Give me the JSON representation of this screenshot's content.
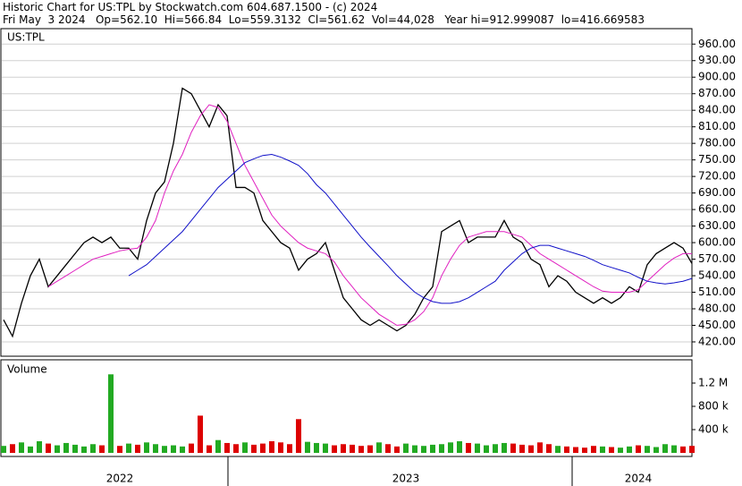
{
  "header": {
    "title": "Historic Chart for US:TPL by Stockwatch.com 604.687.1500 - (c) 2024",
    "quote": "Fri May  3 2024   Op=562.10  Hi=566.84  Lo=559.3132  Cl=561.62  Vol=44,028   Year hi=912.999087  lo=416.669583"
  },
  "chart_data": [
    {
      "type": "line",
      "label": "US:TPL",
      "ylim": [
        394,
        988
      ],
      "yticks": [
        {
          "value": 420,
          "label": "420.00"
        },
        {
          "value": 450,
          "label": "450.00"
        },
        {
          "value": 480,
          "label": "480.00"
        },
        {
          "value": 510,
          "label": "510.00"
        },
        {
          "value": 540,
          "label": "540.00"
        },
        {
          "value": 570,
          "label": "570.00"
        },
        {
          "value": 600,
          "label": "600.00"
        },
        {
          "value": 630,
          "label": "630.00"
        },
        {
          "value": 660,
          "label": "660.00"
        },
        {
          "value": 690,
          "label": "690.00"
        },
        {
          "value": 720,
          "label": "720.00"
        },
        {
          "value": 750,
          "label": "750.00"
        },
        {
          "value": 780,
          "label": "780.00"
        },
        {
          "value": 810,
          "label": "810.00"
        },
        {
          "value": 840,
          "label": "840.00"
        },
        {
          "value": 870,
          "label": "870.00"
        },
        {
          "value": 900,
          "label": "900.00"
        },
        {
          "value": 930,
          "label": "930.00"
        },
        {
          "value": 960,
          "label": "960.00"
        }
      ],
      "grid": true,
      "series": [
        {
          "color": "#000000",
          "values": [
            460,
            430,
            490,
            540,
            570,
            520,
            540,
            560,
            580,
            600,
            610,
            600,
            610,
            590,
            590,
            570,
            640,
            690,
            710,
            780,
            880,
            870,
            840,
            810,
            850,
            830,
            700,
            700,
            690,
            640,
            620,
            600,
            590,
            550,
            570,
            580,
            600,
            550,
            500,
            480,
            460,
            450,
            460,
            450,
            440,
            450,
            470,
            500,
            520,
            620,
            630,
            640,
            600,
            610,
            610,
            610,
            640,
            610,
            600,
            570,
            560,
            520,
            540,
            530,
            510,
            500,
            490,
            500,
            490,
            500,
            520,
            510,
            560,
            580,
            590,
            600,
            590,
            562
          ]
        },
        {
          "color": "#e020c0",
          "values": [
            null,
            null,
            null,
            null,
            null,
            520,
            530,
            540,
            550,
            560,
            570,
            575,
            580,
            585,
            588,
            590,
            610,
            640,
            690,
            730,
            760,
            800,
            830,
            850,
            845,
            820,
            780,
            740,
            710,
            680,
            650,
            630,
            615,
            600,
            590,
            585,
            580,
            565,
            540,
            520,
            500,
            485,
            470,
            460,
            450,
            452,
            460,
            475,
            500,
            540,
            570,
            595,
            610,
            615,
            620,
            620,
            620,
            615,
            610,
            595,
            580,
            570,
            560,
            550,
            540,
            530,
            520,
            512,
            510,
            510,
            510,
            515,
            530,
            545,
            560,
            572,
            580,
            580
          ]
        },
        {
          "color": "#1010c8",
          "values": [
            null,
            null,
            null,
            null,
            null,
            null,
            null,
            null,
            null,
            null,
            null,
            null,
            null,
            null,
            540,
            550,
            560,
            575,
            590,
            605,
            620,
            640,
            660,
            680,
            700,
            715,
            730,
            745,
            752,
            758,
            760,
            755,
            748,
            740,
            725,
            705,
            690,
            670,
            650,
            630,
            610,
            592,
            575,
            558,
            540,
            525,
            510,
            500,
            493,
            490,
            490,
            493,
            500,
            510,
            520,
            530,
            550,
            565,
            580,
            590,
            595,
            595,
            590,
            585,
            580,
            575,
            568,
            560,
            555,
            550,
            545,
            537,
            530,
            527,
            525,
            527,
            530,
            535
          ]
        }
      ]
    },
    {
      "type": "bar",
      "label": "Volume",
      "ylim": [
        0,
        1600000
      ],
      "yticks": [
        {
          "value": 400000,
          "label": "400 k"
        },
        {
          "value": 800000,
          "label": "800 k"
        },
        {
          "value": 1200000,
          "label": "1.2 M"
        }
      ],
      "up_color": "#22aa22",
      "down_color": "#dd0000",
      "categories": [
        null,
        null,
        null,
        null,
        null,
        null,
        null,
        null,
        null,
        null,
        null,
        null,
        null,
        "2022",
        null,
        null,
        null,
        null,
        null,
        null,
        null,
        null,
        null,
        null,
        null,
        null,
        null,
        null,
        null,
        null,
        null,
        null,
        null,
        null,
        null,
        null,
        null,
        null,
        null,
        null,
        null,
        null,
        null,
        null,
        null,
        "2023",
        null,
        null,
        null,
        null,
        null,
        null,
        null,
        null,
        null,
        null,
        null,
        null,
        null,
        null,
        null,
        null,
        null,
        null,
        null,
        null,
        null,
        null,
        null,
        null,
        null,
        "2024",
        null,
        null,
        null,
        null,
        null,
        null
      ],
      "values": [
        120000,
        150000,
        180000,
        110000,
        200000,
        160000,
        130000,
        170000,
        140000,
        110000,
        150000,
        130000,
        1350000,
        120000,
        160000,
        140000,
        180000,
        150000,
        120000,
        130000,
        110000,
        160000,
        640000,
        130000,
        220000,
        170000,
        150000,
        180000,
        140000,
        160000,
        200000,
        180000,
        150000,
        580000,
        190000,
        170000,
        160000,
        130000,
        150000,
        140000,
        120000,
        130000,
        180000,
        150000,
        110000,
        160000,
        130000,
        120000,
        140000,
        150000,
        180000,
        200000,
        170000,
        160000,
        130000,
        150000,
        170000,
        160000,
        140000,
        130000,
        180000,
        150000,
        120000,
        110000,
        100000,
        90000,
        120000,
        110000,
        100000,
        90000,
        110000,
        130000,
        120000,
        100000,
        150000,
        130000,
        110000,
        120000
      ]
    }
  ]
}
